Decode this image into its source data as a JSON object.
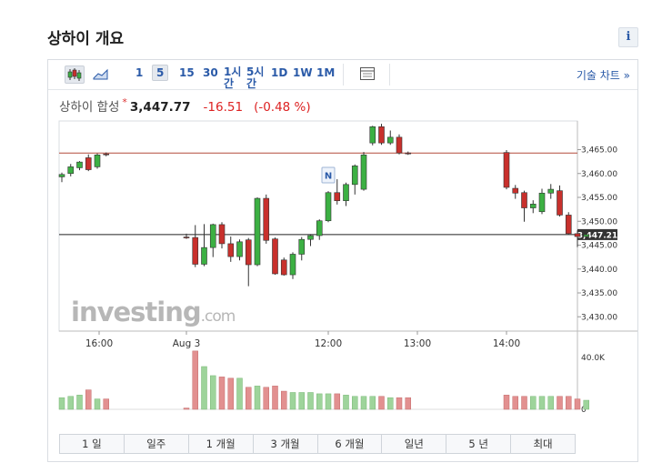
{
  "page": {
    "title": "상하이 개요",
    "info_icon_label": "i"
  },
  "toolbar": {
    "intervals": [
      "1",
      "5",
      "15",
      "30",
      "1시\n간",
      "5시\n간",
      "1D",
      "1W",
      "1M"
    ],
    "selected_interval": "5",
    "tech_chart_link": "기술 차트 »"
  },
  "instrument": {
    "name": "상하이 합성",
    "star": "*",
    "price": "3,447.77",
    "change": "-16.51",
    "change_pct": "(-0.48 %)"
  },
  "ranges": [
    "1 일",
    "일주",
    "1 개월",
    "3 개월",
    "6 개월",
    "일년",
    "5 년",
    "최대"
  ],
  "colors": {
    "up": "#3cb043",
    "down": "#c8302c",
    "up_volume": "#9ed49b",
    "down_volume": "#e29090",
    "link": "#2a5aa8"
  },
  "chart_data": {
    "type": "candlestick",
    "x_ticks": [
      "16:00",
      "Aug 3",
      "12:00",
      "13:00",
      "14:00"
    ],
    "y_ticks": [
      "3,465.00",
      "3,460.00",
      "3,455.00",
      "3,450.00",
      "3,445.00",
      "3,440.00",
      "3,435.00",
      "3,430.00"
    ],
    "ylim": [
      3427,
      3471
    ],
    "volume_ticks": [
      "40.0K",
      "0"
    ],
    "volume_max": 40000,
    "previous_close": 3464.28,
    "current_price_label": "3,447.21",
    "current_price": 3447.21,
    "watermark": "investing.com",
    "event_marker": "N",
    "session1_candles": [
      {
        "o": 3459.3,
        "h": 3460.2,
        "l": 3458.2,
        "c": 3459.8
      },
      {
        "o": 3460.0,
        "h": 3462.0,
        "l": 3459.4,
        "c": 3461.4
      },
      {
        "o": 3461.2,
        "h": 3462.6,
        "l": 3460.7,
        "c": 3462.4
      },
      {
        "o": 3463.3,
        "h": 3464.0,
        "l": 3460.5,
        "c": 3460.8
      },
      {
        "o": 3461.4,
        "h": 3464.2,
        "l": 3461.0,
        "c": 3463.9
      },
      {
        "o": 3464.1,
        "h": 3464.4,
        "l": 3463.6,
        "c": 3464.0
      }
    ],
    "session2_candles": [
      {
        "o": 3446.7,
        "h": 3447.4,
        "l": 3446.3,
        "c": 3446.6
      },
      {
        "o": 3446.6,
        "h": 3449.2,
        "l": 3440.4,
        "c": 3441.0
      },
      {
        "o": 3441.0,
        "h": 3449.4,
        "l": 3440.6,
        "c": 3444.5
      },
      {
        "o": 3444.5,
        "h": 3449.5,
        "l": 3442.5,
        "c": 3449.3
      },
      {
        "o": 3449.3,
        "h": 3449.8,
        "l": 3444.3,
        "c": 3445.3
      },
      {
        "o": 3445.3,
        "h": 3446.8,
        "l": 3441.5,
        "c": 3442.6
      },
      {
        "o": 3442.6,
        "h": 3446.2,
        "l": 3441.8,
        "c": 3445.7
      },
      {
        "o": 3446.1,
        "h": 3446.5,
        "l": 3436.4,
        "c": 3440.9
      },
      {
        "o": 3440.9,
        "h": 3455.0,
        "l": 3440.6,
        "c": 3454.8
      },
      {
        "o": 3454.8,
        "h": 3455.6,
        "l": 3445.3,
        "c": 3446.0
      },
      {
        "o": 3446.3,
        "h": 3446.6,
        "l": 3438.8,
        "c": 3439.0
      },
      {
        "o": 3441.9,
        "h": 3442.4,
        "l": 3438.6,
        "c": 3438.8
      },
      {
        "o": 3438.8,
        "h": 3443.5,
        "l": 3437.9,
        "c": 3443.1
      },
      {
        "o": 3443.1,
        "h": 3446.7,
        "l": 3441.8,
        "c": 3446.2
      },
      {
        "o": 3446.2,
        "h": 3447.3,
        "l": 3444.8,
        "c": 3447.0
      },
      {
        "o": 3447.0,
        "h": 3450.4,
        "l": 3446.1,
        "c": 3450.1
      },
      {
        "o": 3450.1,
        "h": 3456.3,
        "l": 3449.8,
        "c": 3456.0
      },
      {
        "o": 3456.0,
        "h": 3458.8,
        "l": 3453.5,
        "c": 3454.3
      },
      {
        "o": 3454.3,
        "h": 3458.1,
        "l": 3453.2,
        "c": 3457.7
      },
      {
        "o": 3457.7,
        "h": 3461.9,
        "l": 3455.6,
        "c": 3461.6
      },
      {
        "o": 3456.7,
        "h": 3464.5,
        "l": 3456.4,
        "c": 3463.9
      },
      {
        "o": 3466.4,
        "h": 3470.0,
        "l": 3465.9,
        "c": 3469.8
      },
      {
        "o": 3469.8,
        "h": 3470.4,
        "l": 3466.0,
        "c": 3466.4
      },
      {
        "o": 3466.4,
        "h": 3469.0,
        "l": 3466.0,
        "c": 3467.6
      },
      {
        "o": 3467.6,
        "h": 3468.2,
        "l": 3464.0,
        "c": 3464.3
      },
      {
        "o": 3464.3,
        "h": 3464.6,
        "l": 3463.9,
        "c": 3464.2
      }
    ],
    "session3_candles": [
      {
        "o": 3464.4,
        "h": 3464.9,
        "l": 3456.7,
        "c": 3457.1
      },
      {
        "o": 3456.9,
        "h": 3457.6,
        "l": 3454.7,
        "c": 3455.9
      },
      {
        "o": 3456.0,
        "h": 3456.4,
        "l": 3449.9,
        "c": 3452.8
      },
      {
        "o": 3452.8,
        "h": 3454.4,
        "l": 3451.7,
        "c": 3453.6
      },
      {
        "o": 3452.0,
        "h": 3456.8,
        "l": 3451.5,
        "c": 3455.9
      },
      {
        "o": 3455.9,
        "h": 3457.8,
        "l": 3454.7,
        "c": 3456.7
      },
      {
        "o": 3456.4,
        "h": 3457.5,
        "l": 3451.0,
        "c": 3451.3
      },
      {
        "o": 3451.3,
        "h": 3451.9,
        "l": 3447.2,
        "c": 3447.4
      },
      {
        "o": 3447.4,
        "h": 3448.1,
        "l": 3444.6,
        "c": 3446.8
      },
      {
        "o": 3446.8,
        "h": 3447.6,
        "l": 3446.5,
        "c": 3447.2
      }
    ],
    "session1_volumes": [
      9000,
      10000,
      11000,
      15000,
      8000,
      8000
    ],
    "session2_volumes": [
      1000,
      45000,
      33000,
      26000,
      25000,
      24000,
      24000,
      17000,
      18000,
      17000,
      18000,
      14000,
      13000,
      13000,
      13000,
      12000,
      12000,
      12000,
      11000,
      10000,
      10000,
      10000,
      10000,
      9000,
      9000,
      9000
    ],
    "session3_volumes": [
      11000,
      10000,
      10000,
      10000,
      10000,
      10000,
      10000,
      10000,
      8000,
      7000
    ]
  }
}
